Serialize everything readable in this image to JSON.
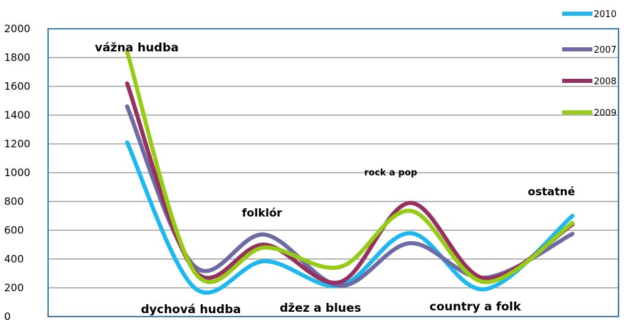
{
  "chart_data": {
    "type": "line",
    "title": "",
    "xlabel": "",
    "ylabel": "",
    "ylim": [
      0,
      2000
    ],
    "y_ticks": [
      "0",
      "200",
      "400",
      "600",
      "800",
      "1000",
      "1200",
      "1400",
      "1600",
      "1800",
      "2000"
    ],
    "grid": true,
    "legend_position": "top-right",
    "categories": [
      "vážna hudba",
      "dychová hudba",
      "folklór",
      "džez a blues",
      "rock a pop",
      "country a folk",
      "ostatné"
    ],
    "series": [
      {
        "name": "2010",
        "color": "#1eb8f0",
        "values": [
          1210,
          200,
          385,
          215,
          580,
          190,
          700
        ]
      },
      {
        "name": "2007",
        "color": "#6e6aa6",
        "values": [
          1460,
          350,
          570,
          215,
          510,
          270,
          575
        ]
      },
      {
        "name": "2008",
        "color": "#96305e",
        "values": [
          1620,
          320,
          500,
          240,
          790,
          265,
          640
        ]
      },
      {
        "name": "2009",
        "color": "#96cc16",
        "values": [
          1840,
          310,
          480,
          345,
          735,
          240,
          650
        ]
      }
    ]
  }
}
